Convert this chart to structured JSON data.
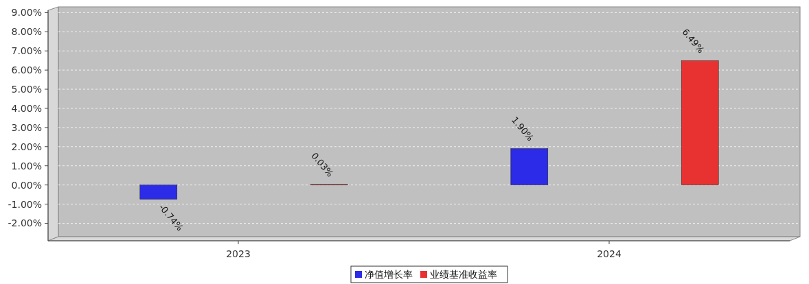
{
  "chart_data": {
    "type": "bar",
    "categories": [
      "2023",
      "2024"
    ],
    "series": [
      {
        "name": "净值增长率",
        "color": "#2b2be8",
        "values": [
          -0.74,
          1.9
        ],
        "value_labels": [
          "-0.74%",
          "1.90%"
        ]
      },
      {
        "name": "业绩基准收益率",
        "color": "#e83232",
        "values": [
          0.03,
          6.49
        ],
        "value_labels": [
          "0.03%",
          "6.49%"
        ]
      }
    ],
    "ylim": [
      -2.7,
      9.3
    ],
    "yticks": [
      {
        "value": -2,
        "label": "-2.00%"
      },
      {
        "value": -1,
        "label": "-1.00%"
      },
      {
        "value": 0,
        "label": "0.00%"
      },
      {
        "value": 1,
        "label": "1.00%"
      },
      {
        "value": 2,
        "label": "2.00%"
      },
      {
        "value": 3,
        "label": "3.00%"
      },
      {
        "value": 4,
        "label": "4.00%"
      },
      {
        "value": 5,
        "label": "5.00%"
      },
      {
        "value": 6,
        "label": "6.00%"
      },
      {
        "value": 7,
        "label": "7.00%"
      },
      {
        "value": 8,
        "label": "8.00%"
      },
      {
        "value": 9,
        "label": "9.00%"
      }
    ],
    "grid": "y",
    "legend": "bottom"
  }
}
